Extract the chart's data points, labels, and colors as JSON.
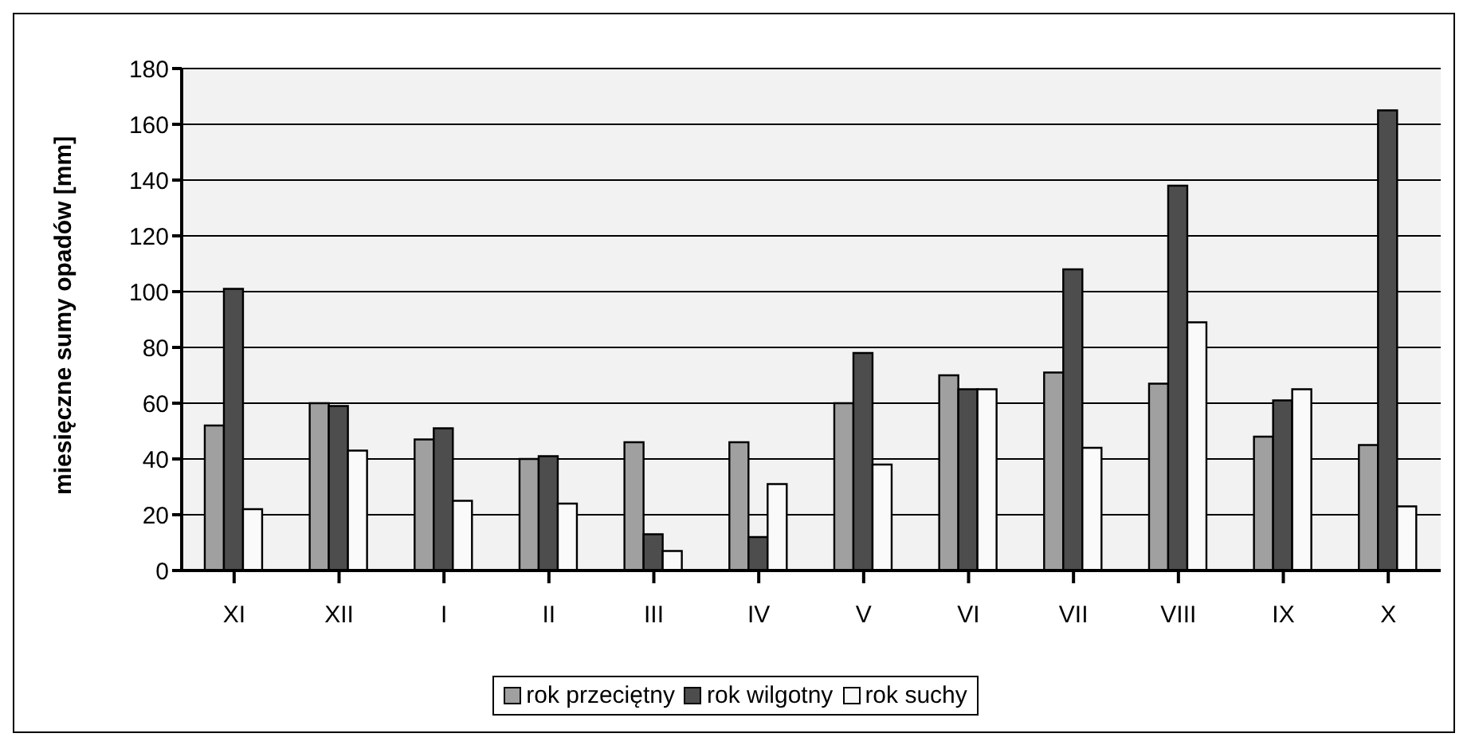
{
  "chart_data": {
    "type": "bar",
    "ylabel": "miesięczne sumy opadów [mm]",
    "categories": [
      "XI",
      "XII",
      "I",
      "II",
      "III",
      "IV",
      "V",
      "VI",
      "VII",
      "VIII",
      "IX",
      "X"
    ],
    "series": [
      {
        "name": "rok przeciętny",
        "color": "#a0a0a0",
        "values": [
          52,
          60,
          47,
          40,
          46,
          46,
          60,
          70,
          71,
          67,
          48,
          45
        ]
      },
      {
        "name": "rok wilgotny",
        "color": "#4d4d4d",
        "values": [
          101,
          59,
          51,
          41,
          13,
          12,
          78,
          65,
          108,
          138,
          61,
          165
        ]
      },
      {
        "name": "rok suchy",
        "color": "#fafafa",
        "values": [
          22,
          43,
          25,
          24,
          7,
          31,
          38,
          65,
          44,
          89,
          65,
          23
        ]
      }
    ],
    "ylim": [
      0,
      180
    ],
    "yticks": [
      0,
      20,
      40,
      60,
      80,
      100,
      120,
      140,
      160,
      180
    ],
    "grid": "y",
    "legend": "bottom"
  }
}
